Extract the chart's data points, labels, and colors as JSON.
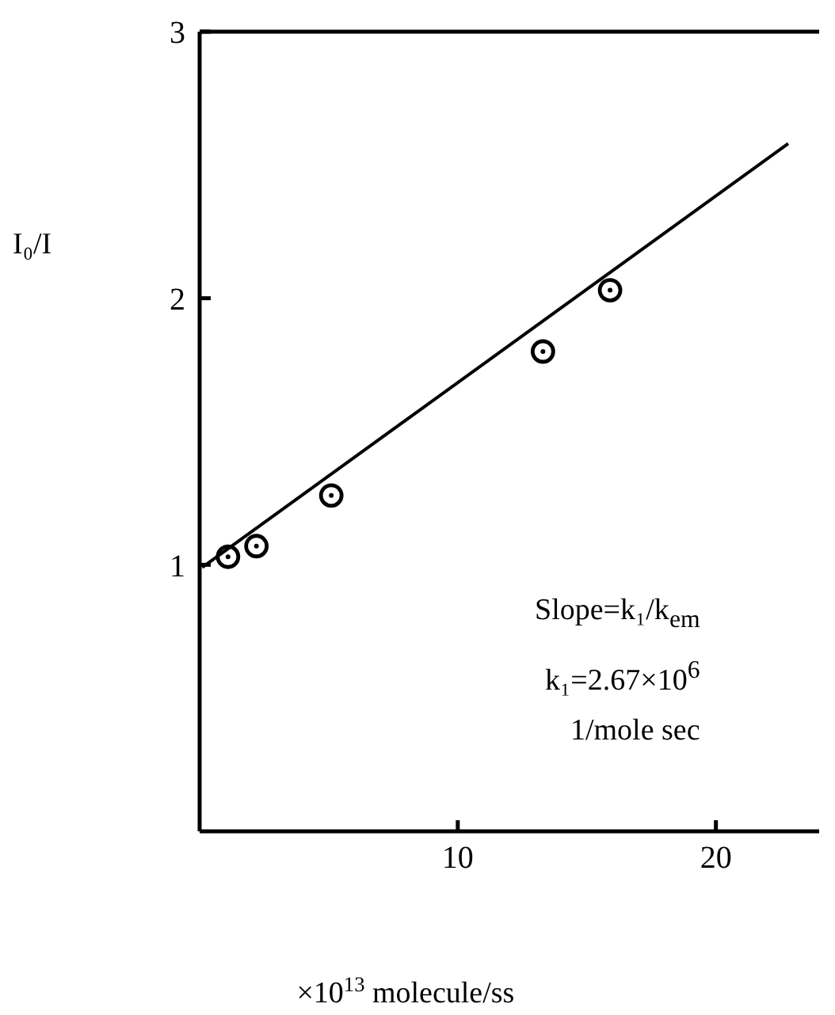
{
  "chart_data": {
    "type": "scatter",
    "xlabel": "×10$^{13}$ molecule/ss",
    "ylabel": "I₀/I",
    "xlim": [
      0,
      24
    ],
    "ylim": [
      0,
      3
    ],
    "xticks": [
      10,
      20
    ],
    "yticks": [
      1,
      2,
      3
    ],
    "grid": false,
    "legend": false,
    "series": [
      {
        "marker": "circle",
        "color": "#000000",
        "x": [
          1.1,
          2.2,
          5.1,
          13.3,
          15.9
        ],
        "values": [
          1.03,
          1.07,
          1.26,
          1.8,
          2.03
        ]
      },
      {
        "type": "line",
        "color": "#000000",
        "line_style": "solid",
        "x": [
          0.1,
          22.8
        ],
        "values": [
          0.99,
          2.58
        ]
      }
    ],
    "annotations": [
      "Slope=k₁/k$_{em}$",
      "k₁=2.67×10$^{6}$",
      "1/mole sec"
    ]
  }
}
